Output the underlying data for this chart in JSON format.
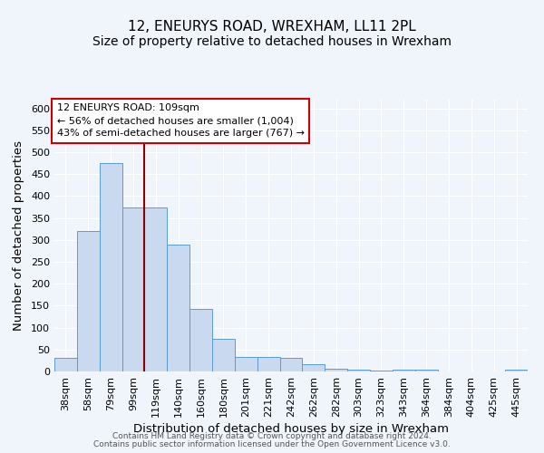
{
  "title1": "12, ENEURYS ROAD, WREXHAM, LL11 2PL",
  "title2": "Size of property relative to detached houses in Wrexham",
  "xlabel": "Distribution of detached houses by size in Wrexham",
  "ylabel": "Number of detached properties",
  "footnote1": "Contains HM Land Registry data © Crown copyright and database right 2024.",
  "footnote2": "Contains public sector information licensed under the Open Government Licence v3.0.",
  "categories": [
    "38sqm",
    "58sqm",
    "79sqm",
    "99sqm",
    "119sqm",
    "140sqm",
    "160sqm",
    "180sqm",
    "201sqm",
    "221sqm",
    "242sqm",
    "262sqm",
    "282sqm",
    "303sqm",
    "323sqm",
    "343sqm",
    "364sqm",
    "384sqm",
    "404sqm",
    "425sqm",
    "445sqm"
  ],
  "values": [
    32,
    320,
    475,
    375,
    375,
    290,
    143,
    75,
    33,
    33,
    30,
    16,
    7,
    5,
    3,
    4,
    4,
    0,
    0,
    0,
    5
  ],
  "bar_color": "#c8d9f0",
  "bar_edge_color": "#5b9bd5",
  "annotation_line1": "12 ENEURYS ROAD: 109sqm",
  "annotation_line2": "← 56% of detached houses are smaller (1,004)",
  "annotation_line3": "43% of semi-detached houses are larger (767) →",
  "annotation_box_color": "#ffffff",
  "annotation_box_edge_color": "#cc0000",
  "vline_x_index": 3.5,
  "vline_color": "#8b0000",
  "ylim": [
    0,
    620
  ],
  "yticks": [
    0,
    50,
    100,
    150,
    200,
    250,
    300,
    350,
    400,
    450,
    500,
    550,
    600
  ],
  "bg_color": "#f0f4fb",
  "grid_color": "#ffffff",
  "title_fontsize": 11,
  "subtitle_fontsize": 10,
  "axis_label_fontsize": 9.5,
  "tick_fontsize": 8,
  "annotation_fontsize": 8,
  "footnote_fontsize": 6.5
}
